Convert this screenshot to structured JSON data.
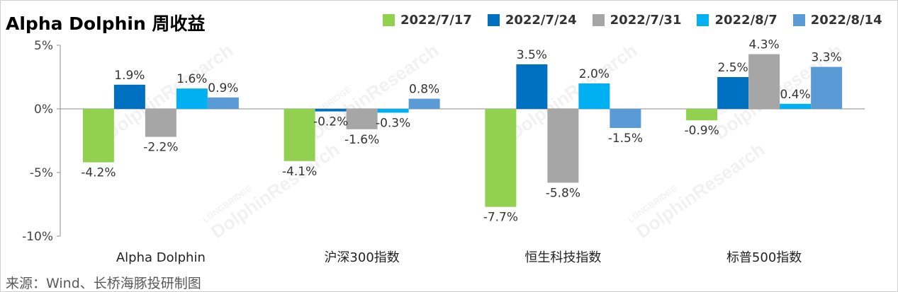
{
  "title": "Alpha Dolphin 周收益",
  "source": "来源：Wind、长桥海豚投研制图",
  "watermark": {
    "brand": "LONGBRIDGE",
    "research": "DolphinResearch"
  },
  "chart_data": {
    "type": "bar",
    "title": "Alpha Dolphin 周收益",
    "categories": [
      "Alpha Dolphin",
      "沪深300指数",
      "恒生科技指数",
      "标普500指数"
    ],
    "series": [
      {
        "name": "2022/7/17",
        "color": "#92D050",
        "values": [
          -4.2,
          -4.1,
          -7.7,
          -0.9
        ]
      },
      {
        "name": "2022/7/24",
        "color": "#0070C0",
        "values": [
          1.9,
          -0.2,
          3.5,
          2.5
        ]
      },
      {
        "name": "2022/7/31",
        "color": "#A6A6A6",
        "values": [
          -2.2,
          -1.6,
          -5.8,
          4.3
        ]
      },
      {
        "name": "2022/8/7",
        "color": "#00B0F0",
        "values": [
          1.6,
          -0.3,
          2.0,
          0.4
        ]
      },
      {
        "name": "2022/8/14",
        "color": "#5B9BD5",
        "values": [
          0.9,
          0.8,
          -1.5,
          3.3
        ]
      }
    ],
    "ylim": [
      -10,
      5
    ],
    "yticks": [
      5,
      0,
      -5,
      -10
    ],
    "ytick_labels": [
      "5%",
      "0%",
      "-5%",
      "-10%"
    ],
    "value_suffix": "%",
    "legend_position": "top",
    "grid": false
  }
}
